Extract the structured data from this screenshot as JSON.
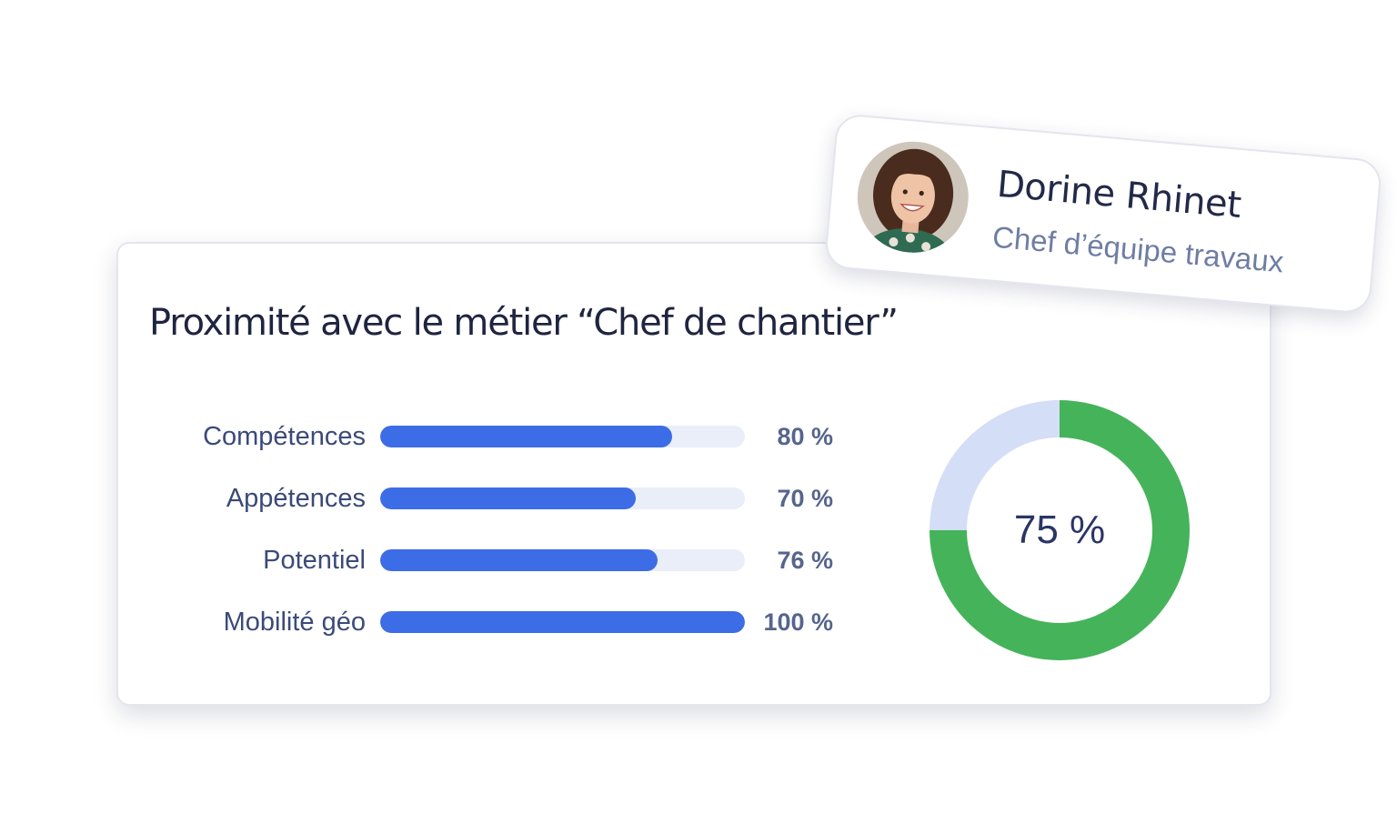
{
  "card": {
    "title": "Proximité avec le métier “Chef de chantier”"
  },
  "profile": {
    "name": "Dorine Rhinet",
    "role": "Chef d’équipe travaux"
  },
  "chart_data": [
    {
      "type": "bar",
      "orientation": "horizontal",
      "categories": [
        "Compétences",
        "Appétences",
        "Potentiel",
        "Mobilité géo"
      ],
      "values": [
        80,
        70,
        76,
        100
      ],
      "value_labels": [
        "80 %",
        "70 %",
        "76 %",
        "100 %"
      ],
      "xlim": [
        0,
        100
      ],
      "colors": {
        "fill": "#3d6ce7",
        "track": "#e9eef9"
      }
    },
    {
      "type": "pie",
      "donut": true,
      "values": [
        75,
        25
      ],
      "center_label": "75 %",
      "colors": [
        "#45b35a",
        "#d4def6"
      ]
    }
  ],
  "colors": {
    "title": "#1f2440",
    "label": "#3b4a78",
    "value": "#56658d"
  }
}
